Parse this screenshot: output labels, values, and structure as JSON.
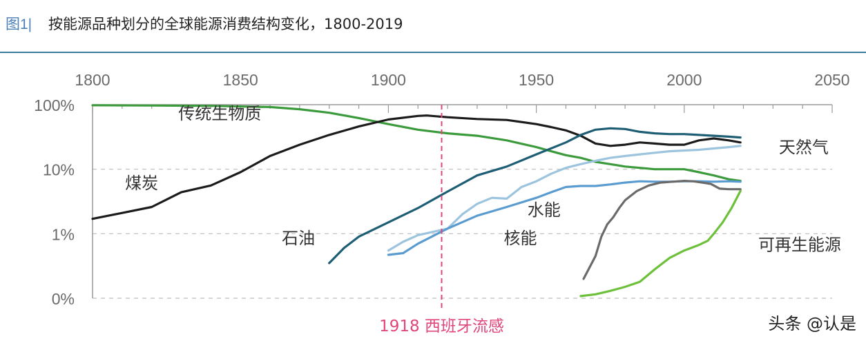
{
  "header": {
    "figure_label": "图1|",
    "title": "按能源品种划分的全球能源消费结构变化，1800-2019"
  },
  "watermark": "头条 @认是",
  "colors": {
    "header_rule": "#3a7a9a",
    "axis": "#9a9a9a",
    "grid": "#bdbdbd",
    "tick_label": "#6a6a6a",
    "label": "#333333",
    "annotation": "#e0457b"
  },
  "chart_data": {
    "type": "line",
    "title": "按能源品种划分的全球能源消费结构变化，1800-2019",
    "xlabel": "",
    "ylabel": "",
    "x_axis_position": "top",
    "xlim": [
      1800,
      2050
    ],
    "x_ticks": [
      "1800",
      "1850",
      "1900",
      "1950",
      "2000",
      "2050"
    ],
    "y_scale": "log",
    "ylim": [
      0.1,
      100
    ],
    "y_ticks": [
      {
        "label": "100%",
        "value": 100
      },
      {
        "label": "10%",
        "value": 10
      },
      {
        "label": "1%",
        "value": 1
      },
      {
        "label": "0%",
        "value": 0.1
      }
    ],
    "grid": true,
    "annotations": [
      {
        "type": "vline",
        "x": 1918,
        "label": "1918 西班牙流感",
        "color": "#e0457b"
      }
    ],
    "series": [
      {
        "name": "传统生物质",
        "color": "#3b9a3b",
        "label_pos": {
          "x": 1829,
          "y": 60
        },
        "points": [
          [
            1800,
            98
          ],
          [
            1820,
            97
          ],
          [
            1840,
            96
          ],
          [
            1860,
            92
          ],
          [
            1870,
            85
          ],
          [
            1880,
            75
          ],
          [
            1890,
            62
          ],
          [
            1900,
            50
          ],
          [
            1910,
            41
          ],
          [
            1920,
            36
          ],
          [
            1930,
            33
          ],
          [
            1940,
            28
          ],
          [
            1950,
            22
          ],
          [
            1955,
            19
          ],
          [
            1960,
            16.5
          ],
          [
            1965,
            15
          ],
          [
            1970,
            13
          ],
          [
            1975,
            12
          ],
          [
            1980,
            11
          ],
          [
            1985,
            10.5
          ],
          [
            1990,
            10
          ],
          [
            1995,
            10
          ],
          [
            2000,
            10
          ],
          [
            2005,
            9
          ],
          [
            2010,
            8
          ],
          [
            2015,
            7
          ],
          [
            2019,
            6.6
          ]
        ]
      },
      {
        "name": "煤炭",
        "color": "#1b1b1b",
        "label_pos": {
          "x": 1811,
          "y": 5
        },
        "points": [
          [
            1800,
            1.7
          ],
          [
            1810,
            2.1
          ],
          [
            1820,
            2.6
          ],
          [
            1830,
            4.4
          ],
          [
            1840,
            5.6
          ],
          [
            1850,
            9
          ],
          [
            1860,
            16
          ],
          [
            1870,
            24
          ],
          [
            1880,
            34
          ],
          [
            1890,
            46
          ],
          [
            1900,
            59
          ],
          [
            1910,
            67
          ],
          [
            1913,
            68
          ],
          [
            1920,
            64
          ],
          [
            1930,
            60
          ],
          [
            1940,
            58
          ],
          [
            1950,
            50
          ],
          [
            1955,
            45
          ],
          [
            1960,
            40
          ],
          [
            1965,
            33
          ],
          [
            1970,
            25
          ],
          [
            1975,
            23
          ],
          [
            1980,
            24
          ],
          [
            1985,
            26
          ],
          [
            1990,
            25
          ],
          [
            1995,
            24
          ],
          [
            2000,
            24
          ],
          [
            2005,
            28
          ],
          [
            2010,
            30
          ],
          [
            2015,
            28
          ],
          [
            2019,
            26
          ]
        ]
      },
      {
        "name": "石油",
        "color": "#1e5e74",
        "label_pos": {
          "x": 1864,
          "y": 0.7
        },
        "points": [
          [
            1880,
            0.35
          ],
          [
            1885,
            0.6
          ],
          [
            1890,
            0.9
          ],
          [
            1900,
            1.5
          ],
          [
            1910,
            2.5
          ],
          [
            1920,
            4.5
          ],
          [
            1930,
            8
          ],
          [
            1940,
            11
          ],
          [
            1950,
            17
          ],
          [
            1960,
            26
          ],
          [
            1965,
            34
          ],
          [
            1970,
            41
          ],
          [
            1975,
            43
          ],
          [
            1980,
            42
          ],
          [
            1985,
            38
          ],
          [
            1990,
            36
          ],
          [
            1995,
            35
          ],
          [
            2000,
            35
          ],
          [
            2005,
            34
          ],
          [
            2010,
            33
          ],
          [
            2015,
            32
          ],
          [
            2019,
            31
          ]
        ]
      },
      {
        "name": "天然气",
        "color": "#9dc4de",
        "label_pos": {
          "x": 2032,
          "y": 18
        },
        "points": [
          [
            1900,
            0.55
          ],
          [
            1905,
            0.75
          ],
          [
            1910,
            0.95
          ],
          [
            1920,
            1.2
          ],
          [
            1925,
            2
          ],
          [
            1930,
            2.9
          ],
          [
            1935,
            3.6
          ],
          [
            1940,
            3.5
          ],
          [
            1945,
            5.3
          ],
          [
            1950,
            6.5
          ],
          [
            1955,
            8.5
          ],
          [
            1960,
            10.5
          ],
          [
            1965,
            12
          ],
          [
            1970,
            13.5
          ],
          [
            1975,
            15
          ],
          [
            1980,
            16
          ],
          [
            1985,
            17
          ],
          [
            1990,
            18
          ],
          [
            1995,
            19
          ],
          [
            2000,
            19.5
          ],
          [
            2005,
            20
          ],
          [
            2010,
            21
          ],
          [
            2015,
            22
          ],
          [
            2019,
            23
          ]
        ]
      },
      {
        "name": "水能",
        "color": "#5b9cd0",
        "label_pos": {
          "x": 1947,
          "y": 1.9
        },
        "points": [
          [
            1900,
            0.47
          ],
          [
            1905,
            0.5
          ],
          [
            1910,
            0.7
          ],
          [
            1920,
            1.2
          ],
          [
            1930,
            1.9
          ],
          [
            1940,
            2.6
          ],
          [
            1950,
            3.6
          ],
          [
            1955,
            4.4
          ],
          [
            1960,
            5.3
          ],
          [
            1965,
            5.5
          ],
          [
            1970,
            5.5
          ],
          [
            1975,
            5.8
          ],
          [
            1980,
            6.2
          ],
          [
            1985,
            6.5
          ],
          [
            1990,
            6.4
          ],
          [
            1995,
            6.4
          ],
          [
            2000,
            6.5
          ],
          [
            2005,
            6.5
          ],
          [
            2010,
            6.4
          ],
          [
            2015,
            6.5
          ],
          [
            2019,
            6.4
          ]
        ]
      },
      {
        "name": "核能",
        "color": "#6a6a6a",
        "label_pos": {
          "x": 1939,
          "y": 0.7
        },
        "points": [
          [
            1966,
            0.2
          ],
          [
            1968,
            0.3
          ],
          [
            1970,
            0.45
          ],
          [
            1972,
            0.9
          ],
          [
            1974,
            1.4
          ],
          [
            1976,
            1.8
          ],
          [
            1978,
            2.5
          ],
          [
            1980,
            3.3
          ],
          [
            1984,
            4.6
          ],
          [
            1988,
            5.6
          ],
          [
            1992,
            6.2
          ],
          [
            1996,
            6.4
          ],
          [
            2000,
            6.6
          ],
          [
            2003,
            6.5
          ],
          [
            2006,
            6.2
          ],
          [
            2009,
            5.9
          ],
          [
            2012,
            5
          ],
          [
            2015,
            4.9
          ],
          [
            2019,
            4.9
          ]
        ]
      },
      {
        "name": "可再生能源",
        "color": "#6cc03a",
        "label_pos": {
          "x": 2025,
          "y": 0.55
        },
        "points": [
          [
            1965,
            0.108
          ],
          [
            1970,
            0.115
          ],
          [
            1975,
            0.13
          ],
          [
            1980,
            0.15
          ],
          [
            1985,
            0.18
          ],
          [
            1990,
            0.28
          ],
          [
            1995,
            0.42
          ],
          [
            2000,
            0.55
          ],
          [
            2005,
            0.67
          ],
          [
            2008,
            0.78
          ],
          [
            2010,
            1
          ],
          [
            2013,
            1.5
          ],
          [
            2016,
            2.5
          ],
          [
            2019,
            4.6
          ]
        ]
      }
    ]
  }
}
